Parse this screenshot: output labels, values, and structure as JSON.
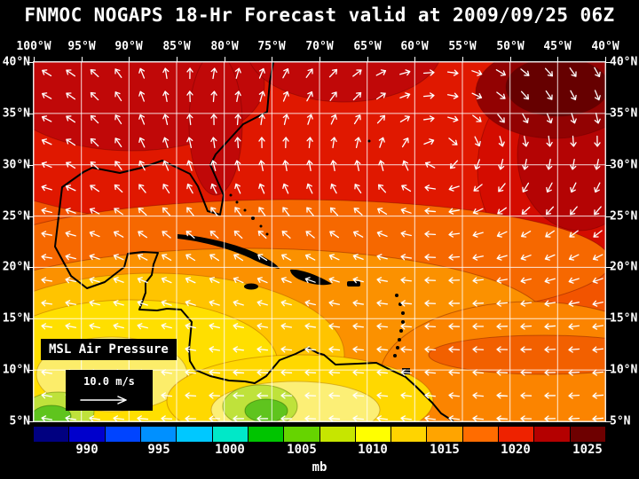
{
  "title": "FNMOC NOGAPS 18-Hr Forecast valid at 2009/09/25 06Z",
  "axes": {
    "lon_labels": [
      "100°W",
      "95°W",
      "90°W",
      "85°W",
      "80°W",
      "75°W",
      "70°W",
      "65°W",
      "60°W",
      "55°W",
      "50°W",
      "45°W",
      "40°W"
    ],
    "lat_labels": [
      "40°N",
      "35°N",
      "30°N",
      "25°N",
      "20°N",
      "15°N",
      "10°N",
      "5°N"
    ]
  },
  "overlays": {
    "field_label": "MSL Air Pressure",
    "wind_scale_label": "10.0 m/s"
  },
  "colorbar": {
    "unit_label": "mb",
    "tick_labels": [
      "990",
      "995",
      "1000",
      "1005",
      "1010",
      "1015",
      "1020",
      "1025"
    ],
    "segment_colors": [
      "#000080",
      "#0000cc",
      "#0044ff",
      "#0090ff",
      "#00c8ff",
      "#00e8c8",
      "#00c400",
      "#66d400",
      "#c6e600",
      "#ffff00",
      "#ffd400",
      "#ffa400",
      "#ff6c00",
      "#ee2200",
      "#b40000",
      "#6e0000"
    ]
  },
  "chart_data": {
    "type": "filled_contour_map",
    "variable": "MSL Air Pressure",
    "unit": "mb",
    "model": "FNMOC NOGAPS",
    "forecast_hour": 18,
    "valid_time": "2009/09/25 06Z",
    "lon_range": [
      "100°W",
      "40°W"
    ],
    "lat_range": [
      "5°N",
      "40°N"
    ],
    "contour_levels_mb": [
      990,
      995,
      1000,
      1005,
      1010,
      1015,
      1020,
      1025
    ],
    "wind_vector_scale_mps": 10.0,
    "colorbar_title": "mb"
  }
}
